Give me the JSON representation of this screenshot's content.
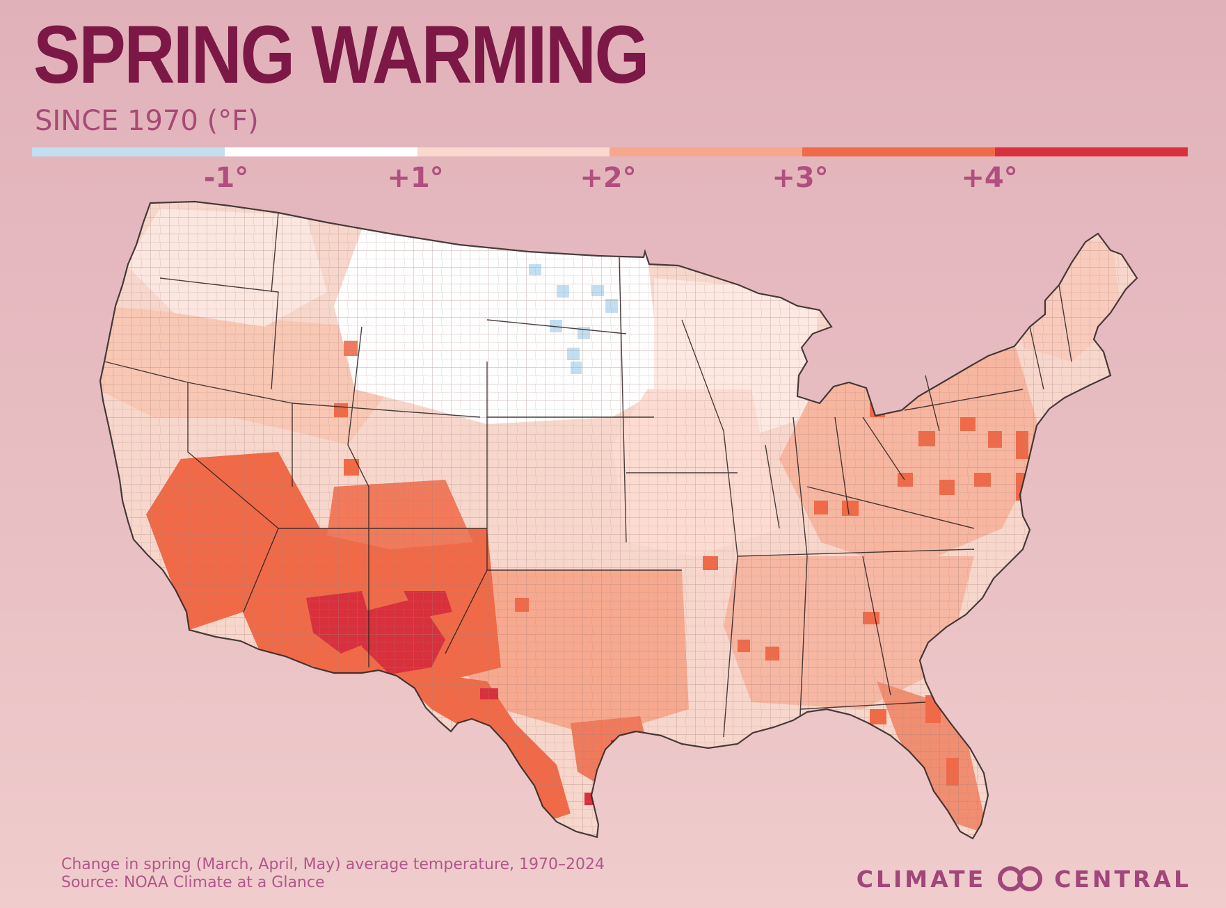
{
  "header": {
    "title": "SPRING WARMING",
    "subtitle": "SINCE 1970 (°F)"
  },
  "legend": {
    "colors": [
      "#c2dff2",
      "#ffffff",
      "#fbd8cf",
      "#f6a88f",
      "#f06a48",
      "#d8303c"
    ],
    "ticks": [
      "-1°",
      "+1°",
      "+2°",
      "+3°",
      "+4°"
    ]
  },
  "map": {
    "region": "contiguous United States",
    "units": "county",
    "state_line_color": "#2a2020",
    "county_line_color": "#a47e7a"
  },
  "footer": {
    "caption": "Change in spring (March, April, May) average temperature, 1970–2024",
    "source": "Source: NOAA Climate at a Glance"
  },
  "brand": {
    "left": "CLIMATE",
    "right": "CENTRAL",
    "logo": "climate-central-logo-icon"
  }
}
